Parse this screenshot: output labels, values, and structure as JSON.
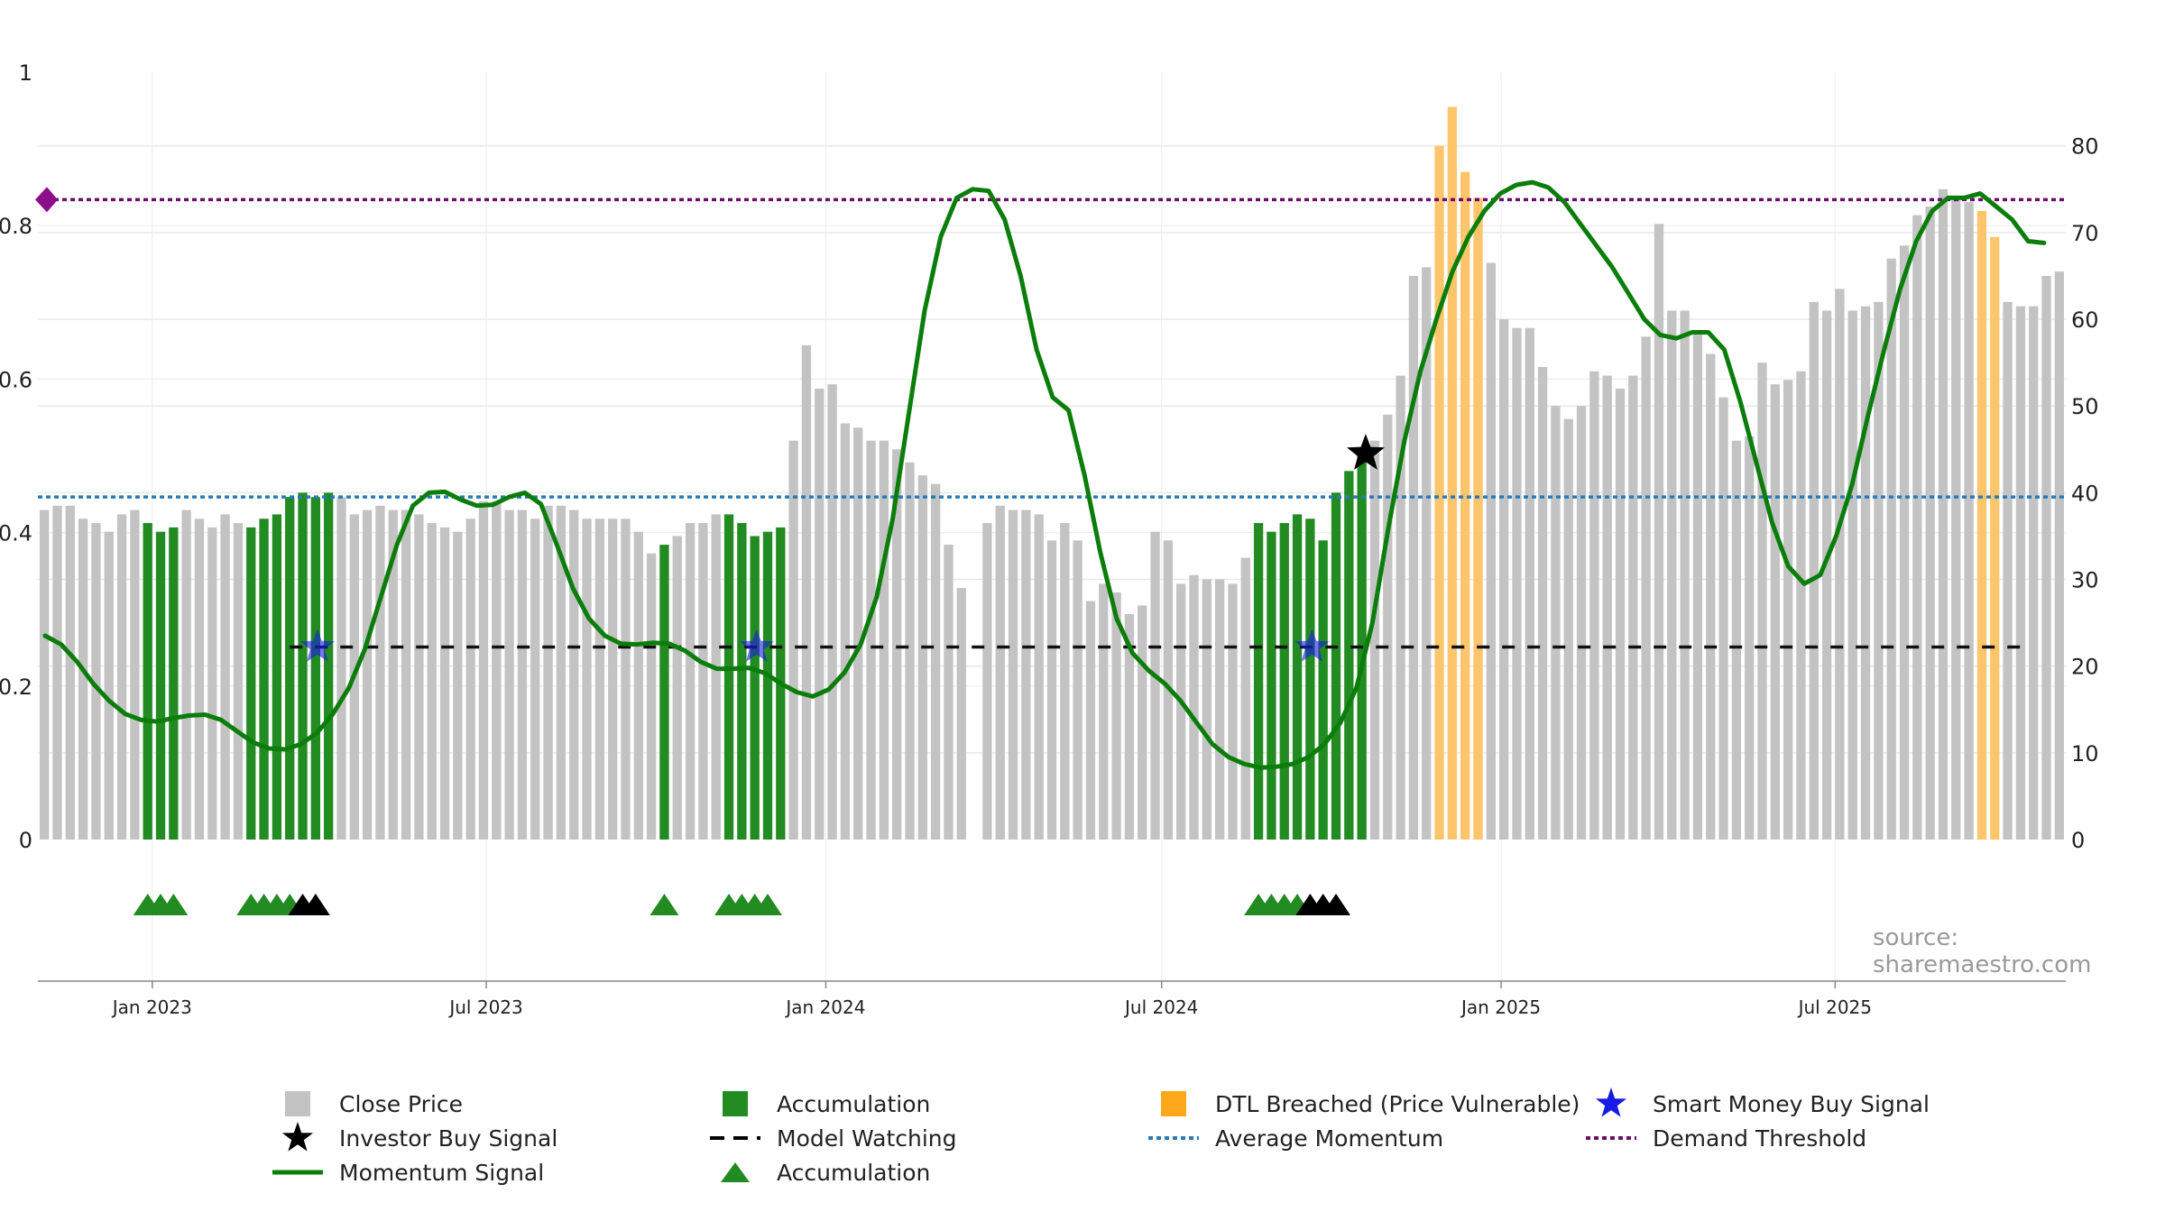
{
  "chart_data": {
    "type": "bar",
    "x_tick_labels": [
      "Jan 2023",
      "Jul 2023",
      "Jan 2024",
      "Jul 2024",
      "Jan 2025",
      "Jul 2025"
    ],
    "left_axis": {
      "ticks": [
        "0",
        "0.2",
        "0.4",
        "0.6",
        "0.8",
        "1"
      ],
      "range": [
        0,
        1
      ]
    },
    "right_axis": {
      "ticks": [
        "0",
        "10",
        "20",
        "30",
        "40",
        "50",
        "60",
        "70",
        "80"
      ],
      "range": [
        0,
        88.5
      ]
    },
    "grid": true,
    "source_label": "source: sharemaestro.com",
    "colors": {
      "close": "#c3c3c3",
      "accumulation": "#228b22",
      "dtl": "#ffc56b",
      "momentum": "#0a7d0a",
      "avg_momentum": "#2a7ab9",
      "demand_threshold": "#6b0d6b",
      "smart_money": "#1a1ae6",
      "investor_buy": "#000000"
    },
    "week_start": "2022-10-31",
    "close_price": [
      38,
      38.5,
      38.5,
      37,
      36.5,
      35.5,
      37.5,
      38,
      36.5,
      35.5,
      36,
      38,
      37,
      36,
      37.5,
      36.5,
      36,
      37,
      37.5,
      39.5,
      40,
      39.5,
      40,
      39.5,
      37.5,
      38,
      38.5,
      38,
      38,
      37.5,
      36.5,
      36,
      35.5,
      37,
      39,
      39,
      38,
      38,
      37,
      38.5,
      38.5,
      38,
      37,
      37,
      37,
      37,
      35.5,
      33,
      34,
      35,
      36.5,
      36.5,
      37.5,
      37.5,
      36.5,
      35,
      35.5,
      36,
      46,
      57,
      52,
      52.5,
      48,
      47.5,
      46,
      46,
      45,
      43.5,
      42,
      41,
      34,
      29,
      null,
      36.5,
      38.5,
      38,
      38,
      37.5,
      34.5,
      36.5,
      34.5,
      27.5,
      29.5,
      28.5,
      26,
      27,
      35.5,
      34.5,
      29.5,
      30.5,
      30,
      30,
      29.5,
      32.5,
      36.5,
      35.5,
      36.5,
      37.5,
      37,
      34.5,
      40,
      42.5,
      44.5,
      46,
      49,
      53.5,
      65,
      66,
      80,
      84.5,
      77,
      74,
      66.5,
      60,
      59,
      59,
      54.5,
      50,
      48.5,
      50,
      54,
      53.5,
      52,
      53.5,
      58,
      71,
      61,
      61,
      58.5,
      56,
      51,
      46,
      46.5,
      55,
      52.5,
      53,
      54,
      62,
      61,
      63.5,
      61,
      61.5,
      62,
      67,
      68.5,
      72,
      73,
      75,
      74,
      73.5,
      72.5,
      69.5,
      62,
      61.5,
      61.5,
      65,
      65.5
    ],
    "accumulation_weeks": [
      8,
      9,
      10,
      16,
      17,
      18,
      19,
      20,
      21,
      22,
      48,
      53,
      54,
      55,
      56,
      57,
      94,
      95,
      96,
      97,
      98,
      99,
      100,
      101,
      102
    ],
    "dtl_weeks": [
      108,
      109,
      110,
      111,
      150,
      151
    ],
    "momentum": [
      23.5,
      22.5,
      20.5,
      18,
      16,
      14.5,
      13.8,
      13.6,
      14,
      14.3,
      14.4,
      13.8,
      12.5,
      11.2,
      10.5,
      10.4,
      11,
      12.3,
      14.5,
      17.5,
      22,
      28,
      34,
      38.5,
      40,
      40.1,
      39.2,
      38.5,
      38.6,
      39.5,
      40,
      38.7,
      34,
      29,
      25.5,
      23.5,
      22.6,
      22.5,
      22.7,
      22.6,
      21.8,
      20.5,
      19.7,
      19.7,
      19.8,
      19.2,
      18,
      17,
      16.5,
      17.3,
      19.3,
      22.5,
      28,
      37,
      49,
      61,
      69.5,
      74,
      75,
      74.8,
      71.5,
      65,
      56.5,
      51,
      49.5,
      42,
      33,
      25.5,
      21.5,
      19.5,
      18,
      16,
      13.5,
      11,
      9.5,
      8.7,
      8.3,
      8.4,
      8.7,
      9.5,
      11,
      13.5,
      17.5,
      25,
      36,
      46,
      54,
      60,
      65.5,
      69.5,
      72.5,
      74.5,
      75.5,
      75.8,
      75.2,
      73.5,
      71,
      68.5,
      66,
      63,
      60,
      58.2,
      57.8,
      58.5,
      58.5,
      56.5,
      50.5,
      43.5,
      36.5,
      31.5,
      29.5,
      30.5,
      35,
      41,
      49,
      56.5,
      63.5,
      69,
      72.5,
      74,
      74,
      74.5,
      73,
      71.5,
      69,
      68.8
    ],
    "momentum_bounds": {
      "first_bar_start": 0,
      "first_bar_end": 158
    },
    "average_momentum": 39.5,
    "demand_threshold": 73.8,
    "model_watching_level": 22.2,
    "model_watching_range": [
      19,
      153
    ],
    "smart_money_buy_weeks": [
      21,
      55,
      98
    ],
    "investor_buy_signals": [
      {
        "week": 102.3,
        "value": 44.5
      }
    ],
    "accumulation_marker_weeks": [
      8,
      9,
      10,
      16,
      17,
      18,
      19,
      48,
      53,
      54,
      55,
      56,
      94,
      95,
      96,
      97
    ],
    "watch_marker_weeks": [
      20,
      21,
      98,
      99,
      100
    ]
  },
  "legend": [
    {
      "label": "Close Price",
      "symbol": "gray-square"
    },
    {
      "label": "Accumulation",
      "symbol": "green-square"
    },
    {
      "label": "DTL Breached (Price Vulnerable)",
      "symbol": "orange-square"
    },
    {
      "label": "Smart Money Buy Signal",
      "symbol": "blue-star"
    },
    {
      "label": "Investor Buy Signal",
      "symbol": "black-star"
    },
    {
      "label": "Model Watching",
      "symbol": "black-dash"
    },
    {
      "label": "Average Momentum",
      "symbol": "blue-dotted"
    },
    {
      "label": "Demand Threshold",
      "symbol": "purple-dotted"
    },
    {
      "label": "Momentum Signal",
      "symbol": "green-line"
    },
    {
      "label": "Accumulation",
      "symbol": "green-triangle"
    }
  ]
}
